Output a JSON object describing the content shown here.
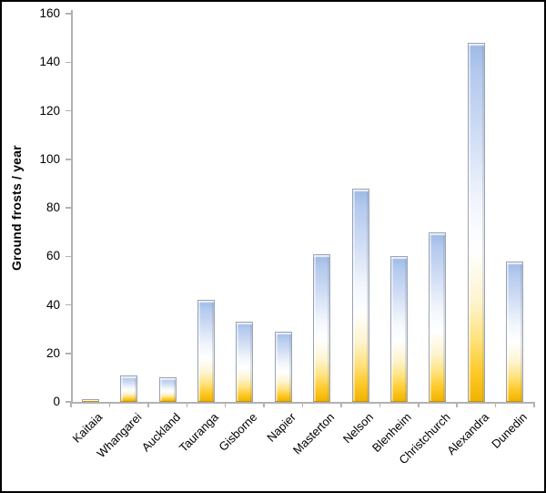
{
  "chart_data": {
    "type": "bar",
    "title": "",
    "xlabel": "",
    "ylabel": "Ground frosts / year",
    "categories": [
      "Kaitaia",
      "Whangarei",
      "Auckland",
      "Tauranga",
      "Gisborne",
      "Napier",
      "Masterton",
      "Nelson",
      "Blenheim",
      "Christchurch",
      "Alexandra",
      "Dunedin"
    ],
    "values": [
      1,
      11,
      10,
      42,
      33,
      29,
      61,
      88,
      60,
      70,
      148,
      58
    ],
    "ylim": [
      0,
      160
    ],
    "yticks": [
      0,
      20,
      40,
      60,
      80,
      100,
      120,
      140,
      160
    ],
    "grid": false,
    "legend": "none",
    "colors": {
      "bar_top": "#9db9e4",
      "bar_middle": "#ffffff",
      "bar_bottom": "#f0b400",
      "bar_edge": "#9aa3b5",
      "axis": "#b2b2b2",
      "text": "#000000",
      "frame": "#000000",
      "background": "#ffffff"
    }
  }
}
